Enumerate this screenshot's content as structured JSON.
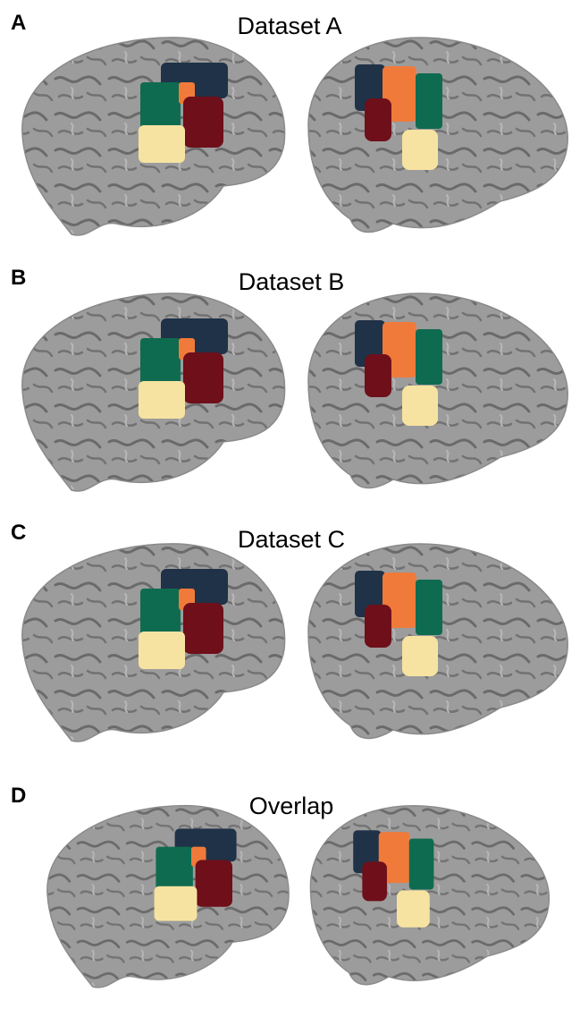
{
  "panels": [
    {
      "label": "A",
      "title": "Dataset A"
    },
    {
      "label": "B",
      "title": "Dataset B"
    },
    {
      "label": "C",
      "title": "Dataset C"
    },
    {
      "label": "D",
      "title": "Overlap"
    }
  ]
}
